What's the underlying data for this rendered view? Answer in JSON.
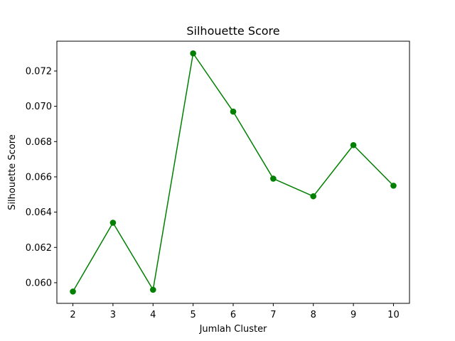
{
  "chart_data": {
    "type": "line",
    "title": "Silhouette Score",
    "xlabel": "Jumlah Cluster",
    "ylabel": "Silhouette Score",
    "x": [
      2,
      3,
      4,
      5,
      6,
      7,
      8,
      9,
      10
    ],
    "x_ticks": [
      "2",
      "3",
      "4",
      "5",
      "6",
      "7",
      "8",
      "9",
      "10"
    ],
    "y_ticks": [
      "0.060",
      "0.062",
      "0.064",
      "0.066",
      "0.068",
      "0.070",
      "0.072"
    ],
    "y_tick_values": [
      0.06,
      0.062,
      0.064,
      0.066,
      0.068,
      0.07,
      0.072
    ],
    "xlim": [
      1.6,
      10.4
    ],
    "ylim": [
      0.05883,
      0.07369
    ],
    "grid": false,
    "series": [
      {
        "values": [
          0.0595,
          0.0634,
          0.0596,
          0.073,
          0.0697,
          0.0659,
          0.0649,
          0.0678,
          0.0655
        ],
        "color": "#008000",
        "marker": "circle"
      }
    ]
  }
}
